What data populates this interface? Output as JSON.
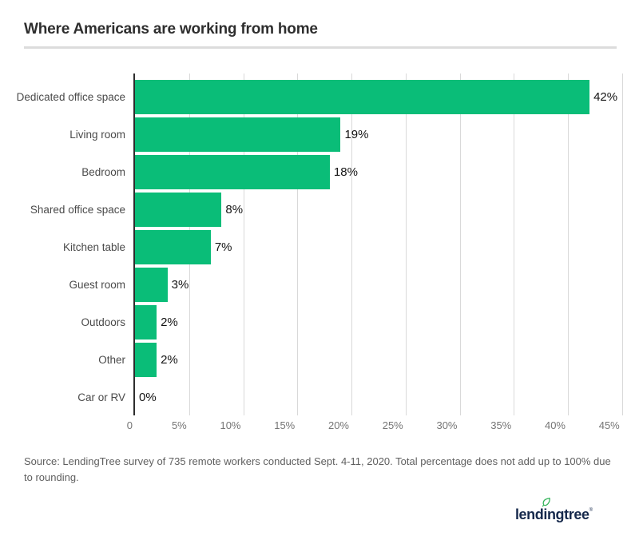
{
  "title": "Where Americans are working from home",
  "chart_data": {
    "type": "bar",
    "orientation": "horizontal",
    "title": "Where Americans are working from home",
    "categories": [
      "Dedicated office space",
      "Living room",
      "Bedroom",
      "Shared office space",
      "Kitchen table",
      "Guest room",
      "Outdoors",
      "Other",
      "Car or RV"
    ],
    "values": [
      42,
      19,
      18,
      8,
      7,
      3,
      2,
      2,
      0
    ],
    "value_labels": [
      "42%",
      "19%",
      "18%",
      "8%",
      "7%",
      "3%",
      "2%",
      "2%",
      "0%"
    ],
    "xlabel": "",
    "ylabel": "",
    "xlim": [
      0,
      45
    ],
    "tick_values": [
      0,
      5,
      10,
      15,
      20,
      25,
      30,
      35,
      40,
      45
    ],
    "tick_labels": [
      "0",
      "5%",
      "10%",
      "15%",
      "20%",
      "25%",
      "30%",
      "35%",
      "40%",
      "45%"
    ],
    "grid": "vertical",
    "legend": "none",
    "bar_color": "#0abd78"
  },
  "source_note": "Source: LendingTree survey of 735 remote workers conducted Sept. 4-11, 2020. Total percentage does not add up to 100% due to rounding.",
  "logo": {
    "text": "lendingtree",
    "pre": "lend",
    "dotted_letter": "i",
    "post": "ngtree",
    "mark": "®",
    "leaf_icon": "leaf-icon"
  },
  "colors": {
    "bar_green": "#0abd78",
    "gridline": "#d9d9d9",
    "axis": "#2d2d2d",
    "title_text": "#2e2e2e",
    "category_text": "#4a4a4a",
    "tick_text": "#757575",
    "value_text": "#141414",
    "source_text": "#5f5f5f",
    "divider": "#dcdcdc",
    "logo_navy": "#16294c",
    "logo_leaf": "#34b45a"
  }
}
